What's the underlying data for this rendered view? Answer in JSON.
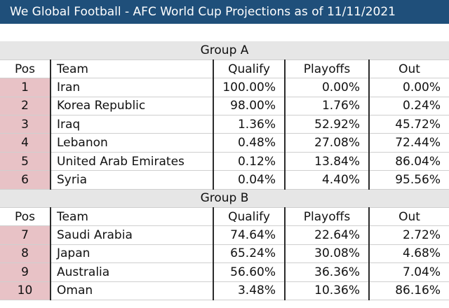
{
  "title": "We Global Football - AFC World Cup Projections as of 11/11/2021",
  "columns": [
    "Pos",
    "Team",
    "Qualify",
    "Playoffs",
    "Out"
  ],
  "colors": {
    "title_bg": "#1f4f7a",
    "pos_bg": "#e8c2c6",
    "group_bg": "#e6e6e6"
  },
  "groups": [
    {
      "name": "Group A",
      "rows": [
        {
          "pos": "1",
          "team": "Iran",
          "qualify": "100.00%",
          "playoffs": "0.00%",
          "out": "0.00%"
        },
        {
          "pos": "2",
          "team": "Korea Republic",
          "qualify": "98.00%",
          "playoffs": "1.76%",
          "out": "0.24%"
        },
        {
          "pos": "3",
          "team": "Iraq",
          "qualify": "1.36%",
          "playoffs": "52.92%",
          "out": "45.72%"
        },
        {
          "pos": "4",
          "team": "Lebanon",
          "qualify": "0.48%",
          "playoffs": "27.08%",
          "out": "72.44%"
        },
        {
          "pos": "5",
          "team": "United Arab Emirates",
          "qualify": "0.12%",
          "playoffs": "13.84%",
          "out": "86.04%"
        },
        {
          "pos": "6",
          "team": "Syria",
          "qualify": "0.04%",
          "playoffs": "4.40%",
          "out": "95.56%"
        }
      ]
    },
    {
      "name": "Group B",
      "rows": [
        {
          "pos": "7",
          "team": "Saudi Arabia",
          "qualify": "74.64%",
          "playoffs": "22.64%",
          "out": "2.72%"
        },
        {
          "pos": "8",
          "team": "Japan",
          "qualify": "65.24%",
          "playoffs": "30.08%",
          "out": "4.68%"
        },
        {
          "pos": "9",
          "team": "Australia",
          "qualify": "56.60%",
          "playoffs": "36.36%",
          "out": "7.04%"
        },
        {
          "pos": "10",
          "team": "Oman",
          "qualify": "3.48%",
          "playoffs": "10.36%",
          "out": "86.16%"
        }
      ]
    }
  ]
}
